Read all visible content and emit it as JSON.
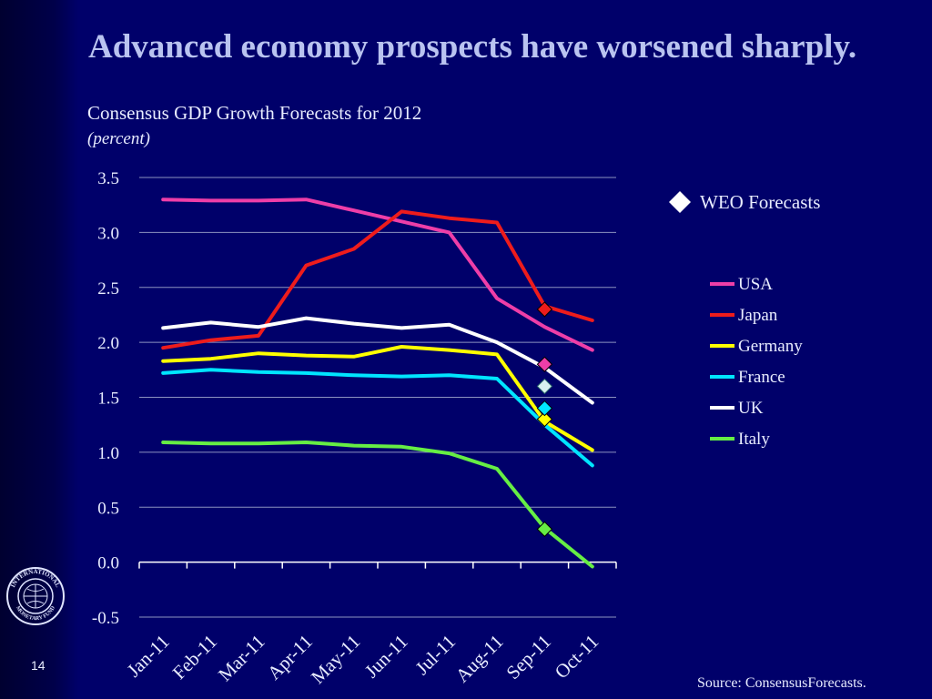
{
  "slide": {
    "title": "Advanced economy prospects have worsened sharply.",
    "page_number": "14",
    "source": "Source: ConsensusForecasts.",
    "logo_text": "INTERNATIONAL MONETARY FUND"
  },
  "colors": {
    "background": "#00006a",
    "axis_text": "#e8ecff",
    "gridline": "#8c93c0"
  },
  "chart_data": {
    "type": "line",
    "title": "Consensus GDP Growth Forecasts for 2012",
    "subtitle": "(percent)",
    "xlabel": "",
    "ylabel": "",
    "ylim": [
      -0.5,
      3.5
    ],
    "y_ticks": [
      "3.5",
      "3.0",
      "2.5",
      "2.0",
      "1.5",
      "1.0",
      "0.5",
      "0.0",
      "-0.5"
    ],
    "categories": [
      "Jan-11",
      "Feb-11",
      "Mar-11",
      "Apr-11",
      "May-11",
      "Jun-11",
      "Jul-11",
      "Aug-11",
      "Sep-11",
      "Oct-11"
    ],
    "grid": true,
    "series": [
      {
        "name": "USA",
        "color": "#ee3ea8",
        "values": [
          3.3,
          3.29,
          3.29,
          3.3,
          3.2,
          3.1,
          3.0,
          2.4,
          2.14,
          1.93
        ]
      },
      {
        "name": "Japan",
        "color": "#ee1c1c",
        "values": [
          1.95,
          2.02,
          2.06,
          2.7,
          2.85,
          3.19,
          3.13,
          3.09,
          2.33,
          2.2
        ]
      },
      {
        "name": "Germany",
        "color": "#ffff00",
        "values": [
          1.83,
          1.85,
          1.9,
          1.88,
          1.87,
          1.96,
          1.93,
          1.89,
          1.28,
          1.02
        ]
      },
      {
        "name": "France",
        "color": "#00e5ff",
        "values": [
          1.72,
          1.75,
          1.73,
          1.72,
          1.7,
          1.69,
          1.7,
          1.67,
          1.25,
          0.88
        ]
      },
      {
        "name": "UK",
        "color": "#ffffff",
        "values": [
          2.13,
          2.18,
          2.14,
          2.22,
          2.17,
          2.13,
          2.16,
          2.0,
          1.77,
          1.45
        ]
      },
      {
        "name": "Italy",
        "color": "#66ee44",
        "values": [
          1.09,
          1.08,
          1.08,
          1.09,
          1.06,
          1.05,
          0.99,
          0.85,
          0.31,
          -0.04
        ]
      }
    ],
    "weo_forecasts": {
      "legend_label": "WEO Forecasts",
      "category": "Sep-11",
      "points": [
        {
          "series": "USA",
          "value": 1.8
        },
        {
          "series": "Japan",
          "value": 2.3
        },
        {
          "series": "Germany",
          "value": 1.3
        },
        {
          "series": "France",
          "value": 1.4
        },
        {
          "series": "UK",
          "value": 1.6
        },
        {
          "series": "Italy",
          "value": 0.3
        }
      ]
    },
    "legend_position": "right"
  }
}
